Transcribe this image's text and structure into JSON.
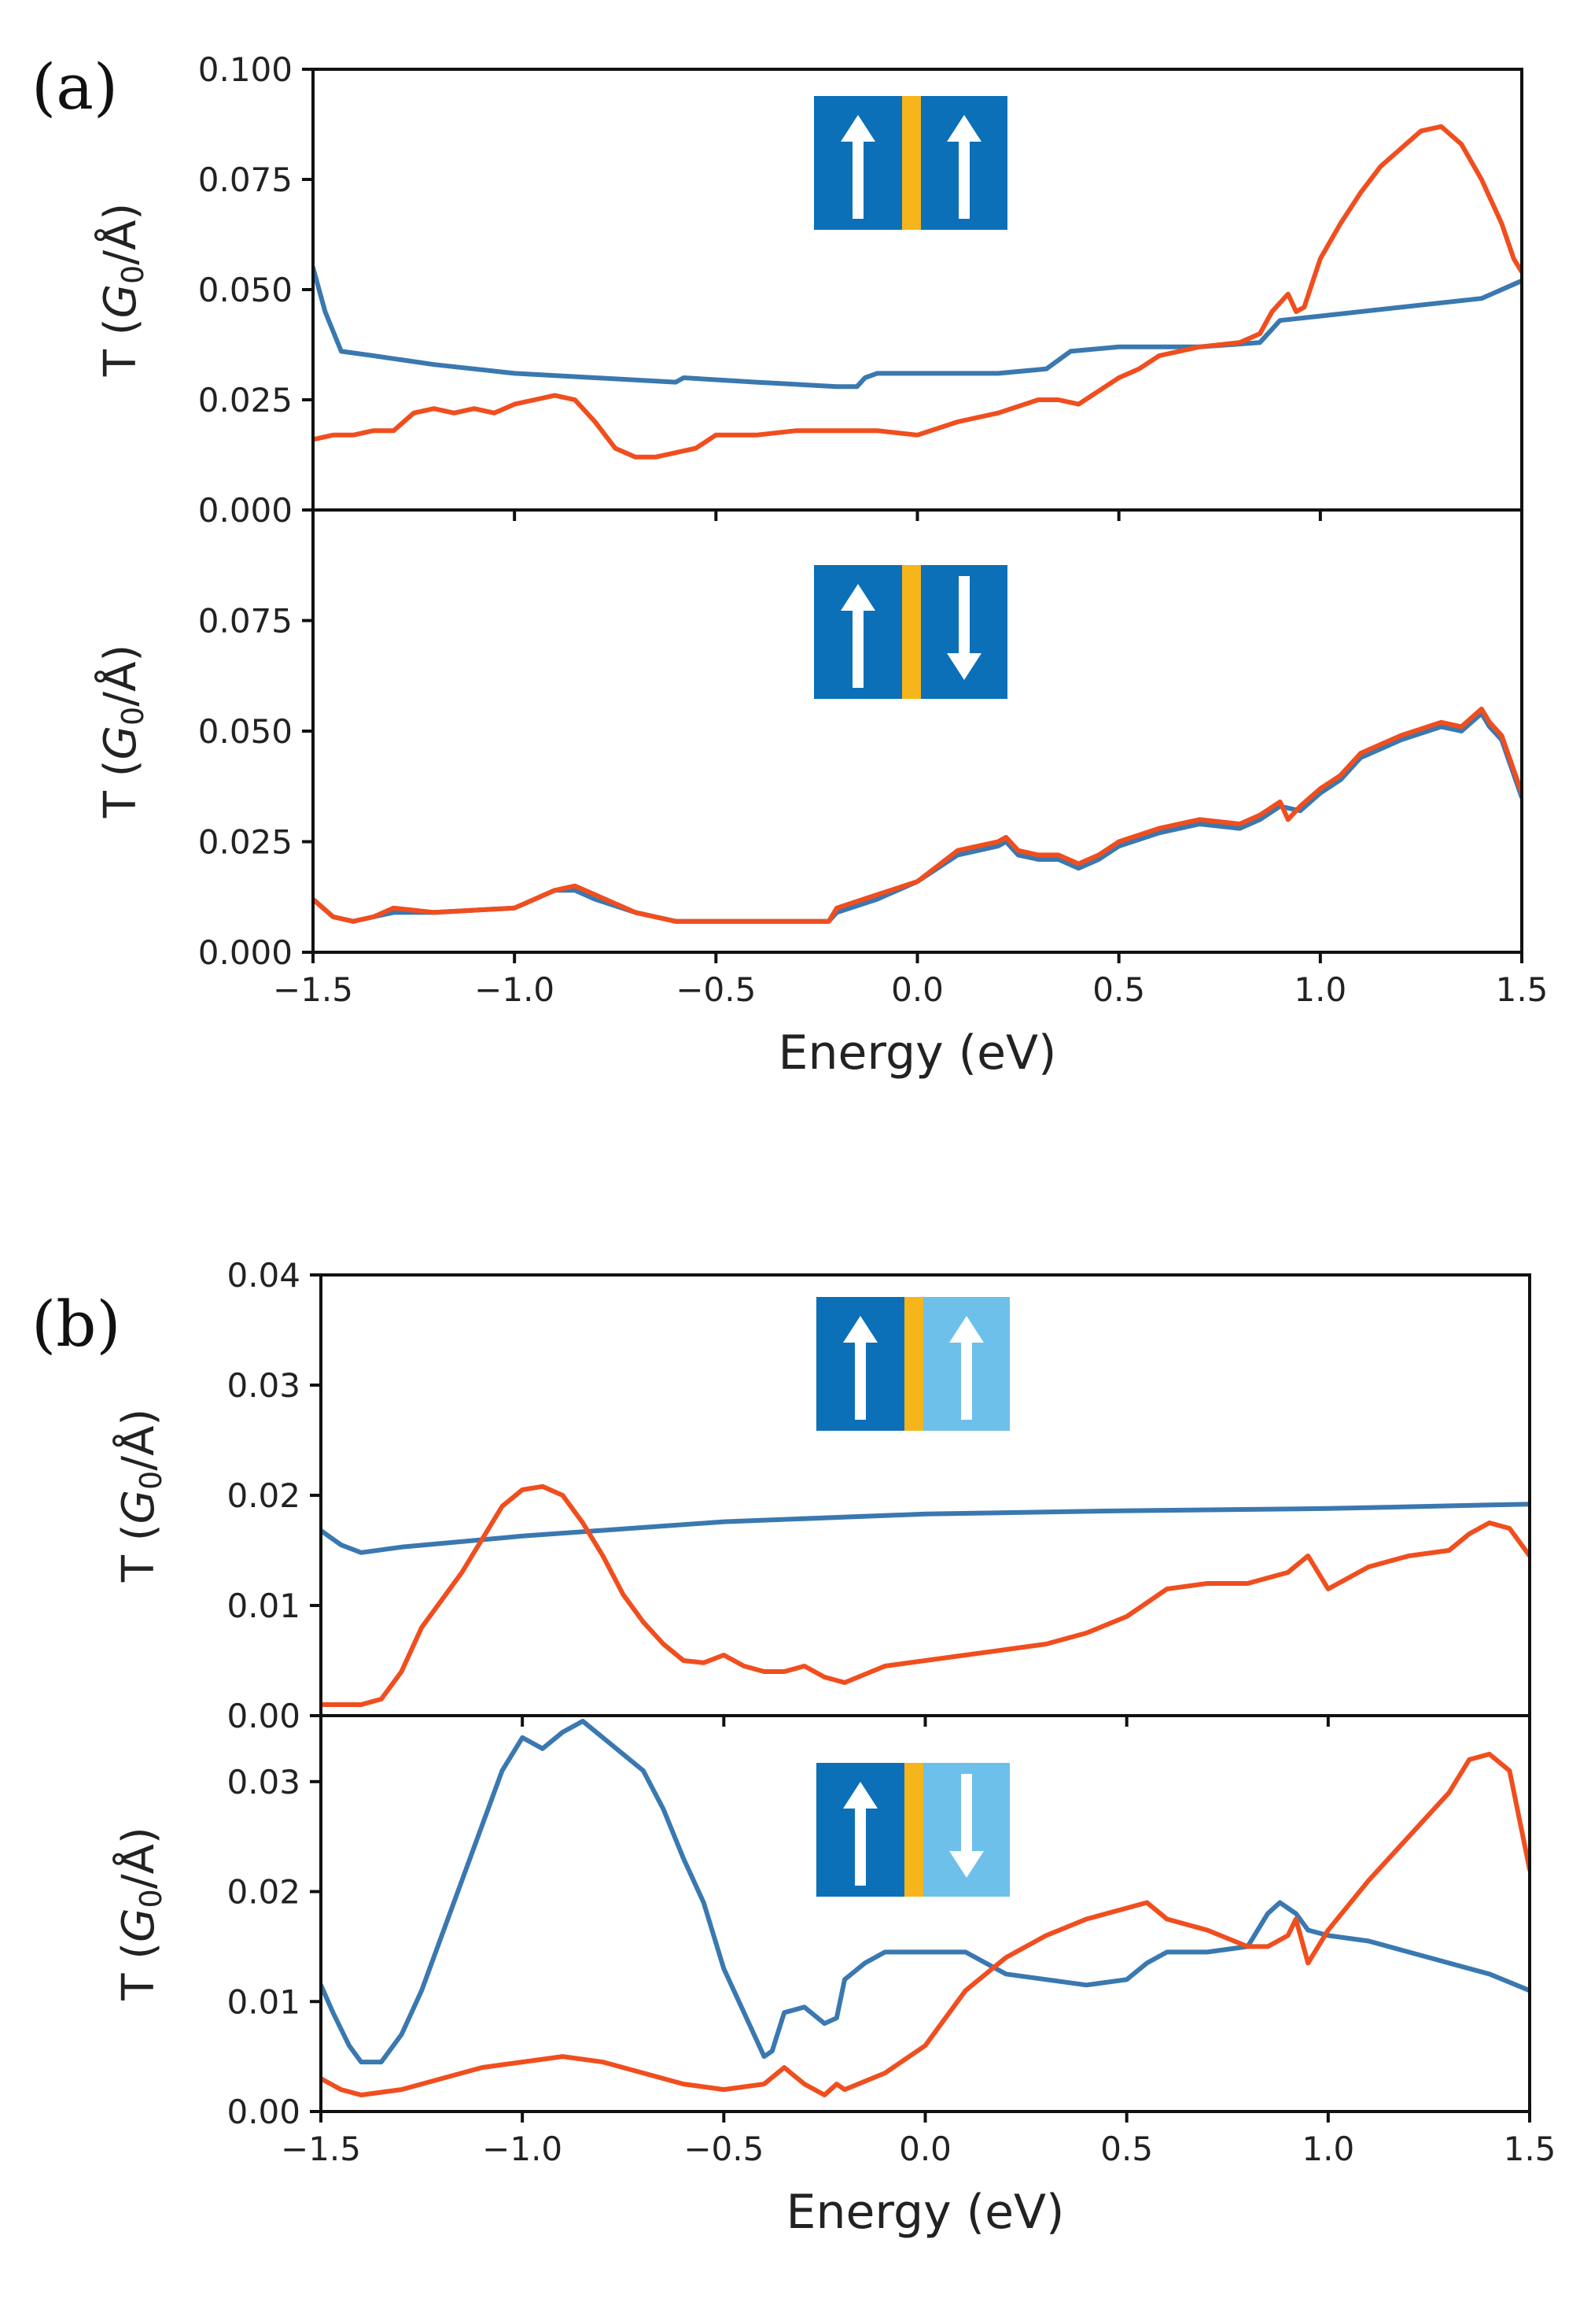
{
  "colors": {
    "series_blue": "#3a78b0",
    "series_orange": "#f04e1e",
    "spin_dark_blue": "#0b70b7",
    "spin_light_blue": "#6cc0ea",
    "spacer_orange": "#f6b51b",
    "arrow": "#ffffff"
  },
  "chart_data": [
    {
      "panel": "(a)",
      "subplot": "top",
      "type": "line",
      "ylabel_prefix": "T (",
      "ylabel_main": "G",
      "ylabel_sub": "0",
      "ylabel_suffix": "/Å)",
      "xlim": [
        -1.5,
        1.5
      ],
      "ylim": [
        0,
        0.1
      ],
      "yticks": [
        0,
        0.025,
        0.05,
        0.075,
        0.1
      ],
      "ytick_labels": [
        "0.000",
        "0.025",
        "0.050",
        "0.075",
        "0.100"
      ],
      "xticks": [
        -1.5,
        -1.0,
        -0.5,
        0.0,
        0.5,
        1.0,
        1.5
      ],
      "show_xticklabels": false,
      "inset": {
        "left_layer": "dark",
        "right_layer": "dark",
        "left_arrow": "up",
        "right_arrow": "up"
      },
      "series": [
        {
          "name": "blue",
          "color": "#3a78b0",
          "x": [
            -1.5,
            -1.47,
            -1.43,
            -1.35,
            -1.2,
            -1.0,
            -0.8,
            -0.6,
            -0.58,
            -0.4,
            -0.2,
            -0.15,
            -0.13,
            -0.1,
            0.0,
            0.2,
            0.32,
            0.38,
            0.5,
            0.7,
            0.85,
            0.9,
            1.0,
            1.2,
            1.4,
            1.5
          ],
          "y": [
            0.055,
            0.045,
            0.036,
            0.035,
            0.033,
            0.031,
            0.03,
            0.029,
            0.03,
            0.029,
            0.028,
            0.028,
            0.03,
            0.031,
            0.031,
            0.031,
            0.032,
            0.036,
            0.037,
            0.037,
            0.038,
            0.043,
            0.044,
            0.046,
            0.048,
            0.052
          ]
        },
        {
          "name": "orange",
          "color": "#f04e1e",
          "x": [
            -1.5,
            -1.45,
            -1.4,
            -1.35,
            -1.3,
            -1.25,
            -1.2,
            -1.15,
            -1.1,
            -1.05,
            -1.0,
            -0.95,
            -0.9,
            -0.85,
            -0.8,
            -0.75,
            -0.7,
            -0.65,
            -0.6,
            -0.55,
            -0.5,
            -0.45,
            -0.4,
            -0.3,
            -0.2,
            -0.1,
            0.0,
            0.1,
            0.2,
            0.3,
            0.35,
            0.4,
            0.45,
            0.5,
            0.55,
            0.6,
            0.7,
            0.8,
            0.85,
            0.88,
            0.92,
            0.94,
            0.96,
            1.0,
            1.05,
            1.1,
            1.15,
            1.2,
            1.25,
            1.3,
            1.35,
            1.4,
            1.45,
            1.48,
            1.5
          ],
          "y": [
            0.016,
            0.017,
            0.017,
            0.018,
            0.018,
            0.022,
            0.023,
            0.022,
            0.023,
            0.022,
            0.024,
            0.025,
            0.026,
            0.025,
            0.02,
            0.014,
            0.012,
            0.012,
            0.013,
            0.014,
            0.017,
            0.017,
            0.017,
            0.018,
            0.018,
            0.018,
            0.017,
            0.02,
            0.022,
            0.025,
            0.025,
            0.024,
            0.027,
            0.03,
            0.032,
            0.035,
            0.037,
            0.038,
            0.04,
            0.045,
            0.049,
            0.045,
            0.046,
            0.057,
            0.065,
            0.072,
            0.078,
            0.082,
            0.086,
            0.087,
            0.083,
            0.075,
            0.065,
            0.057,
            0.054
          ]
        }
      ]
    },
    {
      "panel": "(a)",
      "subplot": "bottom",
      "type": "line",
      "ylabel_prefix": "T (",
      "ylabel_main": "G",
      "ylabel_sub": "0",
      "ylabel_suffix": "/Å)",
      "xlim": [
        -1.5,
        1.5
      ],
      "ylim": [
        0,
        0.1
      ],
      "yticks": [
        0,
        0.025,
        0.05,
        0.075
      ],
      "ytick_labels": [
        "0.000",
        "0.025",
        "0.050",
        "0.075"
      ],
      "xticks": [
        -1.5,
        -1.0,
        -0.5,
        0.0,
        0.5,
        1.0,
        1.5
      ],
      "show_xticklabels": true,
      "xtick_labels": [
        "−1.5",
        "−1.0",
        "−0.5",
        "0.0",
        "0.5",
        "1.0",
        "1.5"
      ],
      "xlabel": "Energy (eV)",
      "inset": {
        "left_layer": "dark",
        "right_layer": "dark",
        "left_arrow": "up",
        "right_arrow": "down"
      },
      "series": [
        {
          "name": "blue",
          "color": "#3a78b0",
          "x": [
            -1.5,
            -1.45,
            -1.4,
            -1.35,
            -1.3,
            -1.2,
            -1.0,
            -0.9,
            -0.85,
            -0.8,
            -0.7,
            -0.6,
            -0.5,
            -0.3,
            -0.22,
            -0.2,
            -0.1,
            0.0,
            0.1,
            0.2,
            0.22,
            0.25,
            0.3,
            0.35,
            0.4,
            0.45,
            0.5,
            0.6,
            0.7,
            0.8,
            0.85,
            0.9,
            0.95,
            1.0,
            1.05,
            1.1,
            1.2,
            1.3,
            1.35,
            1.4,
            1.42,
            1.45,
            1.5
          ],
          "y": [
            0.012,
            0.008,
            0.007,
            0.008,
            0.009,
            0.009,
            0.01,
            0.014,
            0.014,
            0.012,
            0.009,
            0.007,
            0.007,
            0.007,
            0.007,
            0.009,
            0.012,
            0.016,
            0.022,
            0.024,
            0.025,
            0.022,
            0.021,
            0.021,
            0.019,
            0.021,
            0.024,
            0.027,
            0.029,
            0.028,
            0.03,
            0.033,
            0.032,
            0.036,
            0.039,
            0.044,
            0.048,
            0.051,
            0.05,
            0.054,
            0.051,
            0.048,
            0.035
          ]
        },
        {
          "name": "orange",
          "color": "#f04e1e",
          "x": [
            -1.5,
            -1.45,
            -1.4,
            -1.35,
            -1.3,
            -1.2,
            -1.0,
            -0.9,
            -0.85,
            -0.8,
            -0.7,
            -0.6,
            -0.5,
            -0.3,
            -0.22,
            -0.2,
            -0.1,
            0.0,
            0.1,
            0.2,
            0.22,
            0.25,
            0.3,
            0.35,
            0.4,
            0.45,
            0.5,
            0.6,
            0.7,
            0.8,
            0.85,
            0.9,
            0.92,
            0.95,
            1.0,
            1.05,
            1.1,
            1.2,
            1.3,
            1.35,
            1.4,
            1.42,
            1.45,
            1.5
          ],
          "y": [
            0.012,
            0.008,
            0.007,
            0.008,
            0.01,
            0.009,
            0.01,
            0.014,
            0.015,
            0.013,
            0.009,
            0.007,
            0.007,
            0.007,
            0.007,
            0.01,
            0.013,
            0.016,
            0.023,
            0.025,
            0.026,
            0.023,
            0.022,
            0.022,
            0.02,
            0.022,
            0.025,
            0.028,
            0.03,
            0.029,
            0.031,
            0.034,
            0.03,
            0.033,
            0.037,
            0.04,
            0.045,
            0.049,
            0.052,
            0.051,
            0.055,
            0.052,
            0.049,
            0.036
          ]
        }
      ]
    },
    {
      "panel": "(b)",
      "subplot": "top",
      "type": "line",
      "ylabel_prefix": "T (",
      "ylabel_main": "G",
      "ylabel_sub": "0",
      "ylabel_suffix": "/Å)",
      "xlim": [
        -1.5,
        1.5
      ],
      "ylim": [
        0,
        0.04
      ],
      "yticks": [
        0,
        0.01,
        0.02,
        0.03,
        0.04
      ],
      "ytick_labels": [
        "0.00",
        "0.01",
        "0.02",
        "0.03",
        "0.04"
      ],
      "xticks": [
        -1.5,
        -1.0,
        -0.5,
        0.0,
        0.5,
        1.0,
        1.5
      ],
      "show_xticklabels": false,
      "inset": {
        "left_layer": "dark",
        "right_layer": "light",
        "left_arrow": "up",
        "right_arrow": "up"
      },
      "series": [
        {
          "name": "blue",
          "color": "#3a78b0",
          "x": [
            -1.5,
            -1.45,
            -1.4,
            -1.3,
            -1.0,
            -0.5,
            0.0,
            0.5,
            1.0,
            1.5
          ],
          "y": [
            0.0168,
            0.0155,
            0.0148,
            0.0153,
            0.0163,
            0.0176,
            0.0183,
            0.0186,
            0.0188,
            0.0192
          ]
        },
        {
          "name": "orange",
          "color": "#f04e1e",
          "x": [
            -1.5,
            -1.45,
            -1.4,
            -1.35,
            -1.3,
            -1.25,
            -1.2,
            -1.15,
            -1.1,
            -1.05,
            -1.0,
            -0.95,
            -0.9,
            -0.85,
            -0.8,
            -0.75,
            -0.7,
            -0.65,
            -0.6,
            -0.55,
            -0.5,
            -0.45,
            -0.4,
            -0.35,
            -0.3,
            -0.25,
            -0.2,
            -0.1,
            0.0,
            0.1,
            0.2,
            0.3,
            0.4,
            0.5,
            0.6,
            0.7,
            0.8,
            0.85,
            0.9,
            0.95,
            1.0,
            1.1,
            1.2,
            1.3,
            1.35,
            1.4,
            1.45,
            1.5
          ],
          "y": [
            0.001,
            0.001,
            0.001,
            0.0015,
            0.004,
            0.008,
            0.0105,
            0.013,
            0.016,
            0.019,
            0.0205,
            0.0208,
            0.02,
            0.0175,
            0.0145,
            0.011,
            0.0085,
            0.0065,
            0.005,
            0.0048,
            0.0055,
            0.0045,
            0.004,
            0.004,
            0.0045,
            0.0035,
            0.003,
            0.0045,
            0.005,
            0.0055,
            0.006,
            0.0065,
            0.0075,
            0.009,
            0.0115,
            0.012,
            0.012,
            0.0125,
            0.013,
            0.0145,
            0.0115,
            0.0135,
            0.0145,
            0.015,
            0.0165,
            0.0175,
            0.017,
            0.0145
          ]
        }
      ]
    },
    {
      "panel": "(b)",
      "subplot": "bottom",
      "type": "line",
      "ylabel_prefix": "T (",
      "ylabel_main": "G",
      "ylabel_sub": "0",
      "ylabel_suffix": "/Å)",
      "xlim": [
        -1.5,
        1.5
      ],
      "ylim": [
        0,
        0.036
      ],
      "yticks": [
        0,
        0.01,
        0.02,
        0.03
      ],
      "ytick_labels": [
        "0.00",
        "0.01",
        "0.02",
        "0.03"
      ],
      "xticks": [
        -1.5,
        -1.0,
        -0.5,
        0.0,
        0.5,
        1.0,
        1.5
      ],
      "show_xticklabels": true,
      "xtick_labels": [
        "−1.5",
        "−1.0",
        "−0.5",
        "0.0",
        "0.5",
        "1.0",
        "1.5"
      ],
      "xlabel": "Energy (eV)",
      "inset": {
        "left_layer": "dark",
        "right_layer": "light",
        "left_arrow": "up",
        "right_arrow": "down"
      },
      "series": [
        {
          "name": "blue",
          "color": "#3a78b0",
          "x": [
            -1.5,
            -1.47,
            -1.43,
            -1.4,
            -1.35,
            -1.3,
            -1.25,
            -1.2,
            -1.15,
            -1.1,
            -1.05,
            -1.0,
            -0.95,
            -0.9,
            -0.85,
            -0.8,
            -0.75,
            -0.7,
            -0.65,
            -0.6,
            -0.55,
            -0.5,
            -0.45,
            -0.4,
            -0.38,
            -0.35,
            -0.3,
            -0.25,
            -0.22,
            -0.2,
            -0.15,
            -0.1,
            0.0,
            0.1,
            0.2,
            0.3,
            0.4,
            0.5,
            0.55,
            0.6,
            0.7,
            0.8,
            0.85,
            0.88,
            0.92,
            0.95,
            1.0,
            1.1,
            1.2,
            1.3,
            1.4,
            1.5
          ],
          "y": [
            0.0115,
            0.009,
            0.006,
            0.0045,
            0.0045,
            0.007,
            0.011,
            0.016,
            0.021,
            0.026,
            0.031,
            0.034,
            0.033,
            0.0345,
            0.0355,
            0.034,
            0.0325,
            0.031,
            0.0275,
            0.023,
            0.019,
            0.013,
            0.009,
            0.005,
            0.0055,
            0.009,
            0.0095,
            0.008,
            0.0085,
            0.012,
            0.0135,
            0.0145,
            0.0145,
            0.0145,
            0.0125,
            0.012,
            0.0115,
            0.012,
            0.0135,
            0.0145,
            0.0145,
            0.015,
            0.018,
            0.019,
            0.018,
            0.0165,
            0.016,
            0.0155,
            0.0145,
            0.0135,
            0.0125,
            0.011
          ]
        },
        {
          "name": "orange",
          "color": "#f04e1e",
          "x": [
            -1.5,
            -1.45,
            -1.4,
            -1.3,
            -1.2,
            -1.1,
            -1.0,
            -0.9,
            -0.8,
            -0.7,
            -0.6,
            -0.5,
            -0.4,
            -0.35,
            -0.3,
            -0.25,
            -0.22,
            -0.2,
            -0.1,
            0.0,
            0.1,
            0.2,
            0.3,
            0.4,
            0.5,
            0.55,
            0.6,
            0.7,
            0.8,
            0.85,
            0.9,
            0.92,
            0.95,
            1.0,
            1.1,
            1.2,
            1.3,
            1.35,
            1.4,
            1.45,
            1.5
          ],
          "y": [
            0.003,
            0.002,
            0.0015,
            0.002,
            0.003,
            0.004,
            0.0045,
            0.005,
            0.0045,
            0.0035,
            0.0025,
            0.002,
            0.0025,
            0.004,
            0.0025,
            0.0015,
            0.0025,
            0.002,
            0.0035,
            0.006,
            0.011,
            0.014,
            0.016,
            0.0175,
            0.0185,
            0.019,
            0.0175,
            0.0165,
            0.015,
            0.015,
            0.016,
            0.0175,
            0.0135,
            0.0165,
            0.021,
            0.025,
            0.029,
            0.032,
            0.0325,
            0.031,
            0.022
          ]
        }
      ]
    }
  ]
}
